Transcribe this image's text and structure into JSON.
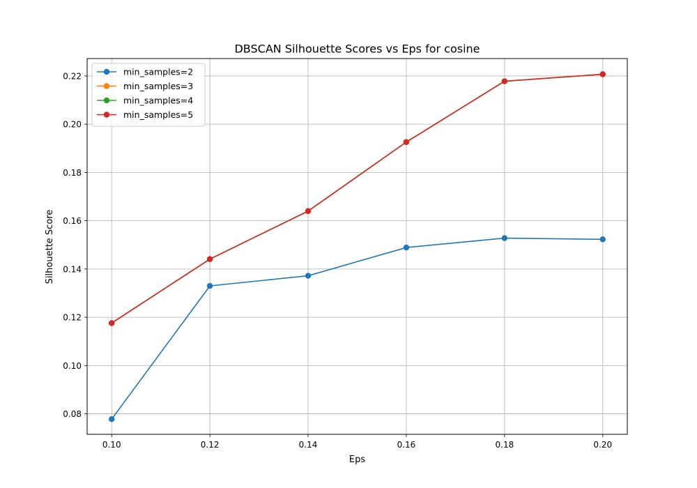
{
  "chart_data": {
    "type": "line",
    "title": "DBSCAN Silhouette Scores vs Eps for cosine",
    "xlabel": "Eps",
    "ylabel": "Silhouette Score",
    "x": [
      0.1,
      0.12,
      0.14,
      0.16,
      0.18,
      0.2
    ],
    "x_ticks": [
      "0.10",
      "0.12",
      "0.14",
      "0.16",
      "0.18",
      "0.20"
    ],
    "y_ticks": [
      "0.08",
      "0.10",
      "0.12",
      "0.14",
      "0.16",
      "0.18",
      "0.20",
      "0.22"
    ],
    "xlim": [
      0.095,
      0.205
    ],
    "ylim": [
      0.0715,
      0.2272
    ],
    "grid": true,
    "legend_position": "upper-left",
    "series": [
      {
        "name": "min_samples=2",
        "color": "#1f77b4",
        "values": [
          0.0778,
          0.133,
          0.1372,
          0.1489,
          0.1528,
          0.1523
        ]
      },
      {
        "name": "min_samples=3",
        "color": "#ff7f0e",
        "values": [
          0.1176,
          0.1441,
          0.164,
          0.1926,
          0.2178,
          0.2207
        ]
      },
      {
        "name": "min_samples=4",
        "color": "#2ca02c",
        "values": [
          0.1176,
          0.1441,
          0.164,
          0.1926,
          0.2178,
          0.2207
        ]
      },
      {
        "name": "min_samples=5",
        "color": "#d62728",
        "values": [
          0.1176,
          0.1441,
          0.164,
          0.1926,
          0.2178,
          0.2207
        ]
      }
    ]
  }
}
